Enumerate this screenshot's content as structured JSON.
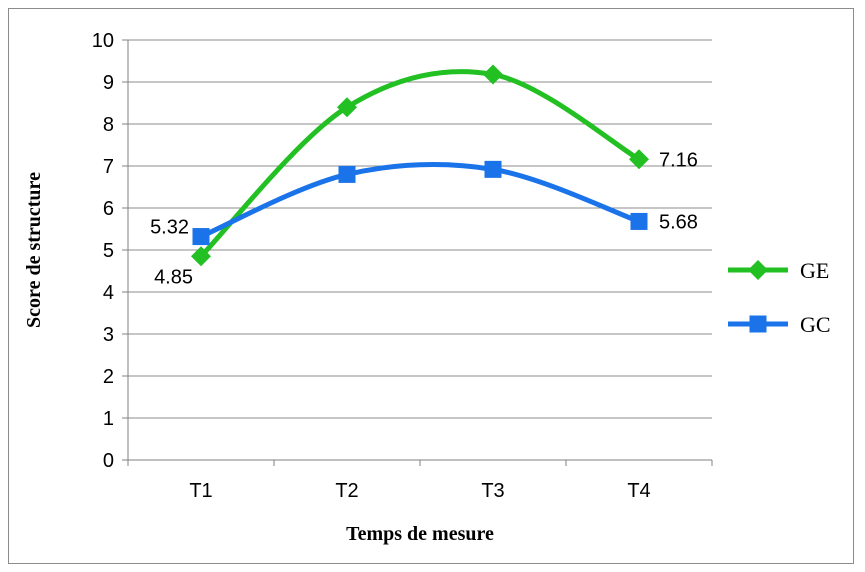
{
  "chart_data": {
    "type": "line",
    "categories": [
      "T1",
      "T2",
      "T3",
      "T4"
    ],
    "series": [
      {
        "name": "GE",
        "values": [
          4.85,
          8.4,
          9.18,
          7.16
        ],
        "color": "#22c022",
        "marker": "diamond"
      },
      {
        "name": "GC",
        "values": [
          5.32,
          6.8,
          6.92,
          5.68
        ],
        "color": "#1a73e8",
        "marker": "square"
      }
    ],
    "data_labels": [
      {
        "series": 0,
        "index": 0,
        "text": "4.85"
      },
      {
        "series": 1,
        "index": 0,
        "text": "5.32"
      },
      {
        "series": 0,
        "index": 3,
        "text": "7.16"
      },
      {
        "series": 1,
        "index": 3,
        "text": "5.68"
      }
    ],
    "xlabel": "Temps de mesure",
    "ylabel": "Score de structure",
    "ylim": [
      0,
      10
    ],
    "yticks": [
      "0",
      "1",
      "2",
      "3",
      "4",
      "5",
      "6",
      "7",
      "8",
      "9",
      "10"
    ],
    "grid": true,
    "smooth": true,
    "legend_position": "right"
  }
}
